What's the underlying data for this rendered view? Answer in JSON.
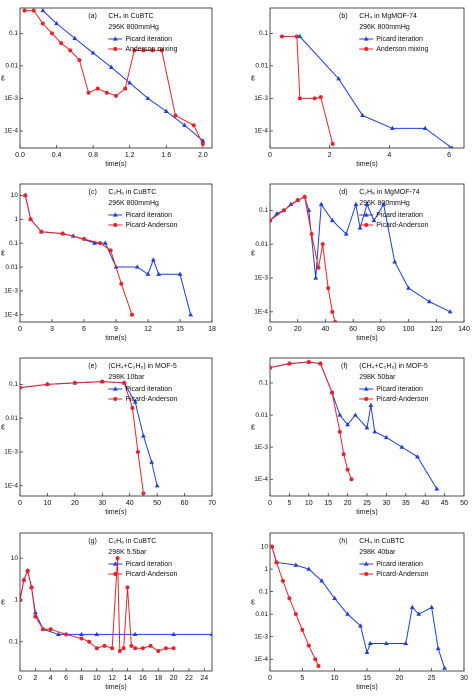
{
  "chart_data": [
    {
      "type": "line",
      "log_y": true,
      "xlabel": "time(s)",
      "ylabel": "ε",
      "legend": "upper right",
      "annotations": [
        "(a)",
        "CH₄ in CuBTC",
        "296K 800mmHg"
      ],
      "xlim": [
        0,
        2.1
      ],
      "xticks": [
        {
          "value": 0,
          "label": "0.0"
        },
        0.4,
        0.8,
        1.2,
        1.6,
        {
          "value": 2,
          "label": "2.0"
        }
      ],
      "ylim": [
        3e-05,
        0.6
      ],
      "yticks": [
        {
          "value": 0.0001,
          "label": "1E-4"
        },
        {
          "value": 0.001,
          "label": "1E-3"
        },
        0.01,
        0.1
      ],
      "series": [
        {
          "name": "Picard iteration",
          "color": "#1f3fd8",
          "marker": "triangle",
          "x": [
            0.25,
            0.4,
            0.6,
            0.8,
            1.0,
            1.2,
            1.4,
            1.6,
            1.8,
            2.0
          ],
          "values": [
            0.5,
            0.2,
            0.07,
            0.025,
            0.009,
            0.003,
            0.001,
            0.0004,
            0.00015,
            5e-05
          ]
        },
        {
          "name": "Anderson mixing",
          "color": "#e8242a",
          "marker": "circle",
          "x": [
            0.05,
            0.15,
            0.25,
            0.35,
            0.45,
            0.55,
            0.65,
            0.75,
            0.85,
            0.95,
            1.05,
            1.15,
            1.25,
            1.35,
            1.45,
            1.55,
            1.7,
            1.9,
            2.0
          ],
          "values": [
            0.5,
            0.5,
            0.2,
            0.1,
            0.05,
            0.03,
            0.015,
            0.0015,
            0.002,
            0.0015,
            0.0012,
            0.002,
            0.03,
            0.03,
            0.03,
            0.03,
            0.0003,
            0.00015,
            4e-05
          ]
        }
      ]
    },
    {
      "type": "line",
      "log_y": true,
      "xlabel": "time(s)",
      "ylabel": "ε",
      "legend": "upper right",
      "annotations": [
        "(b)",
        "CH₄ in MgMOF-74",
        "296K 800mmHg"
      ],
      "xlim": [
        0,
        6.5
      ],
      "xticks": [
        0,
        2,
        4,
        6
      ],
      "ylim": [
        3e-05,
        0.6
      ],
      "yticks": [
        {
          "value": 0.0001,
          "label": "1E-4"
        },
        {
          "value": 0.001,
          "label": "1E-3"
        },
        0.01,
        0.1
      ],
      "series": [
        {
          "name": "Picard iteration",
          "color": "#1f3fd8",
          "marker": "triangle",
          "x": [
            1.0,
            2.3,
            3.1,
            4.1,
            5.2,
            6.1
          ],
          "values": [
            0.08,
            0.004,
            0.0003,
            0.00012,
            0.00012,
            3e-05
          ]
        },
        {
          "name": "Anderson mixing",
          "color": "#e8242a",
          "marker": "circle",
          "x": [
            0.4,
            0.9,
            1.0,
            1.5,
            1.7,
            2.1
          ],
          "values": [
            0.08,
            0.08,
            0.001,
            0.001,
            0.0011,
            4e-05
          ]
        }
      ]
    },
    {
      "type": "line",
      "log_y": true,
      "xlabel": "time(s)",
      "ylabel": "ε",
      "legend": "upper right",
      "annotations": [
        "(c)",
        "C₂H₆ in CuBTC",
        "296K 800mmHg"
      ],
      "xlim": [
        0,
        18
      ],
      "xticks": [
        0,
        3,
        6,
        9,
        12,
        15,
        18
      ],
      "ylim": [
        5e-05,
        30
      ],
      "yticks": [
        {
          "value": 0.0001,
          "label": "1E-4"
        },
        {
          "value": 0.001,
          "label": "1E-3"
        },
        0.01,
        0.1,
        1,
        10
      ],
      "series": [
        {
          "name": "Picard iteration",
          "color": "#1f3fd8",
          "marker": "triangle",
          "x": [
            0.5,
            1,
            2,
            4,
            5,
            7,
            8,
            9,
            11,
            12,
            12.5,
            13,
            15,
            16
          ],
          "values": [
            10,
            1,
            0.3,
            0.25,
            0.2,
            0.1,
            0.1,
            0.01,
            0.01,
            0.005,
            0.02,
            0.005,
            0.005,
            0.0001
          ]
        },
        {
          "name": "Picard-Anderson",
          "color": "#e8242a",
          "marker": "circle",
          "x": [
            0.5,
            1,
            2,
            4,
            6,
            7.5,
            8.5,
            9.5,
            10.5
          ],
          "values": [
            10,
            1,
            0.3,
            0.25,
            0.15,
            0.1,
            0.05,
            0.002,
            0.0001
          ]
        }
      ]
    },
    {
      "type": "line",
      "log_y": true,
      "xlabel": "time(s)",
      "ylabel": "ε",
      "legend": "upper right",
      "annotations": [
        "(d)",
        "C₂H₆ in MgMOF-74",
        "296K 800mmHg"
      ],
      "xlim": [
        0,
        140
      ],
      "xticks": [
        0,
        20,
        40,
        60,
        80,
        100,
        120,
        140
      ],
      "ylim": [
        5e-05,
        0.6
      ],
      "yticks": [
        {
          "value": 0.0001,
          "label": "1E-4"
        },
        {
          "value": 0.001,
          "label": "1E-3"
        },
        0.01,
        0.1
      ],
      "series": [
        {
          "name": "Picard iteration",
          "color": "#1f3fd8",
          "marker": "triangle",
          "x": [
            0,
            5,
            10,
            15,
            20,
            25,
            28,
            33,
            37,
            45,
            55,
            62,
            65,
            70,
            75,
            82,
            90,
            100,
            115,
            130
          ],
          "values": [
            0.05,
            0.08,
            0.1,
            0.15,
            0.2,
            0.25,
            0.1,
            0.001,
            0.15,
            0.05,
            0.02,
            0.15,
            0.03,
            0.15,
            0.05,
            0.15,
            0.003,
            0.0005,
            0.0002,
            0.0001
          ]
        },
        {
          "name": "Picard-Anderson",
          "color": "#e8242a",
          "marker": "circle",
          "x": [
            0,
            10,
            20,
            25,
            30,
            35,
            38,
            42,
            45,
            47
          ],
          "values": [
            0.05,
            0.1,
            0.2,
            0.25,
            0.02,
            0.002,
            0.01,
            0.0005,
            0.0001,
            5e-05
          ]
        }
      ]
    },
    {
      "type": "line",
      "log_y": true,
      "xlabel": "time(s)",
      "ylabel": "ε",
      "legend": "upper right",
      "annotations": [
        "(e)",
        "(CH₄+C₂H₆) in MOF-5",
        "298K 10bar"
      ],
      "xlim": [
        0,
        70
      ],
      "xticks": [
        0,
        10,
        20,
        30,
        40,
        50,
        60,
        70
      ],
      "ylim": [
        5e-05,
        0.6
      ],
      "yticks": [
        {
          "value": 0.0001,
          "label": "1E-4"
        },
        {
          "value": 0.001,
          "label": "1E-3"
        },
        0.01,
        0.1
      ],
      "series": [
        {
          "name": "Picard iteration",
          "color": "#1f3fd8",
          "marker": "triangle",
          "x": [
            0,
            10,
            20,
            30,
            38,
            42,
            45,
            48,
            50
          ],
          "values": [
            0.08,
            0.1,
            0.11,
            0.12,
            0.11,
            0.03,
            0.003,
            0.0005,
            0.0001
          ]
        },
        {
          "name": "Picard-Anderson",
          "color": "#e8242a",
          "marker": "circle",
          "x": [
            0,
            10,
            20,
            30,
            38,
            41,
            43,
            45
          ],
          "values": [
            0.08,
            0.1,
            0.11,
            0.12,
            0.11,
            0.02,
            0.001,
            6e-05
          ]
        }
      ]
    },
    {
      "type": "line",
      "log_y": true,
      "xlabel": "time(s)",
      "ylabel": "ε",
      "legend": "upper right",
      "annotations": [
        "(f)",
        "(CH₄+C₂H₆) in MOF-5",
        "298K 50bar"
      ],
      "xlim": [
        0,
        50
      ],
      "xticks": [
        0,
        5,
        10,
        15,
        20,
        25,
        30,
        35,
        40,
        45,
        50
      ],
      "ylim": [
        3e-05,
        0.6
      ],
      "yticks": [
        {
          "value": 0.0001,
          "label": "1E-4"
        },
        {
          "value": 0.001,
          "label": "1E-3"
        },
        0.01,
        0.1
      ],
      "series": [
        {
          "name": "Picard iteration",
          "color": "#1f3fd8",
          "marker": "triangle",
          "x": [
            0,
            5,
            10,
            13,
            16,
            18,
            20,
            22,
            25,
            26,
            27,
            30,
            34,
            38,
            43
          ],
          "values": [
            0.3,
            0.4,
            0.45,
            0.4,
            0.05,
            0.01,
            0.005,
            0.01,
            0.004,
            0.02,
            0.003,
            0.002,
            0.001,
            0.0005,
            5e-05
          ]
        },
        {
          "name": "Picard-Anderson",
          "color": "#e8242a",
          "marker": "circle",
          "x": [
            0,
            5,
            10,
            13,
            16,
            18,
            19,
            20,
            21
          ],
          "values": [
            0.3,
            0.4,
            0.45,
            0.4,
            0.05,
            0.003,
            0.0006,
            0.0002,
            0.0001
          ]
        }
      ]
    },
    {
      "type": "line",
      "log_y": true,
      "xlabel": "time(s)",
      "ylabel": "ε",
      "legend": "upper right",
      "annotations": [
        "(g)",
        "C₂H₆ in CuBTC",
        "298K 5.5bar"
      ],
      "xlim": [
        0,
        25
      ],
      "xticks": [
        0,
        2,
        4,
        6,
        8,
        10,
        12,
        14,
        16,
        18,
        20,
        22,
        24
      ],
      "ylim": [
        0.02,
        40
      ],
      "yticks": [
        0.1,
        1,
        10
      ],
      "series": [
        {
          "name": "Picard iteration",
          "color": "#1f3fd8",
          "marker": "triangle",
          "x": [
            0,
            0.5,
            1,
            1.5,
            2,
            3,
            5,
            8,
            10,
            15,
            20,
            25
          ],
          "values": [
            1,
            3,
            5,
            2,
            0.5,
            0.2,
            0.15,
            0.15,
            0.15,
            0.15,
            0.15,
            0.15
          ]
        },
        {
          "name": "Picard-Anderson",
          "color": "#e8242a",
          "marker": "circle",
          "x": [
            0,
            0.5,
            1,
            1.5,
            2,
            3,
            4,
            6,
            8,
            9,
            10,
            11,
            12,
            12.7,
            13,
            13.5,
            14,
            14.5,
            15,
            16,
            17,
            18,
            19,
            20
          ],
          "values": [
            1,
            3,
            5,
            2,
            0.4,
            0.2,
            0.2,
            0.15,
            0.12,
            0.1,
            0.07,
            0.08,
            0.07,
            10,
            0.06,
            0.07,
            2,
            0.08,
            0.07,
            0.07,
            0.08,
            0.06,
            0.07,
            0.07
          ]
        }
      ]
    },
    {
      "type": "line",
      "log_y": true,
      "xlabel": "time(s)",
      "ylabel": "ε",
      "legend": "upper right",
      "annotations": [
        "(h)",
        "CH₄ in CuBTC",
        "298K 40bar"
      ],
      "xlim": [
        0,
        30
      ],
      "xticks": [
        0,
        5,
        10,
        15,
        20,
        25,
        30
      ],
      "ylim": [
        3e-05,
        40
      ],
      "yticks": [
        {
          "value": 0.0001,
          "label": "1E-4"
        },
        {
          "value": 0.001,
          "label": "1E-3"
        },
        0.01,
        0.1,
        1,
        10
      ],
      "series": [
        {
          "name": "Picard iteration",
          "color": "#1f3fd8",
          "marker": "triangle",
          "x": [
            0.3,
            1,
            4,
            6,
            8,
            10,
            12,
            14,
            15,
            15.5,
            18,
            21,
            22,
            23,
            25,
            26,
            27
          ],
          "values": [
            10,
            2,
            1.5,
            1,
            0.3,
            0.05,
            0.01,
            0.003,
            0.0002,
            0.0005,
            0.0005,
            0.0005,
            0.02,
            0.01,
            0.02,
            0.0003,
            4e-05
          ]
        },
        {
          "name": "Picard-Anderson",
          "color": "#e8242a",
          "marker": "circle",
          "x": [
            0.3,
            1,
            2,
            3,
            4,
            5,
            6,
            7,
            7.5
          ],
          "values": [
            10,
            2,
            0.3,
            0.05,
            0.01,
            0.002,
            0.0004,
            0.0001,
            5e-05
          ]
        }
      ]
    }
  ]
}
